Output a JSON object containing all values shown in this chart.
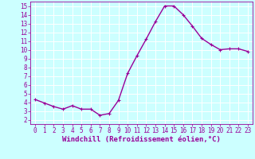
{
  "x": [
    0,
    1,
    2,
    3,
    4,
    5,
    6,
    7,
    8,
    9,
    10,
    11,
    12,
    13,
    14,
    15,
    16,
    17,
    18,
    19,
    20,
    21,
    22,
    23
  ],
  "y": [
    4.3,
    3.9,
    3.5,
    3.2,
    3.6,
    3.2,
    3.2,
    2.5,
    2.7,
    4.2,
    7.3,
    9.3,
    11.2,
    13.2,
    15.0,
    15.0,
    14.0,
    12.7,
    11.3,
    10.6,
    10.0,
    10.1,
    10.1,
    9.8
  ],
  "line_color": "#990099",
  "marker": "+",
  "marker_size": 3,
  "background_color": "#ccffff",
  "grid_color": "#ffffff",
  "xlabel": "Windchill (Refroidissement éolien,°C)",
  "ylabel": "",
  "title": "",
  "xlim": [
    -0.5,
    23.5
  ],
  "ylim": [
    1.5,
    15.5
  ],
  "yticks": [
    2,
    3,
    4,
    5,
    6,
    7,
    8,
    9,
    10,
    11,
    12,
    13,
    14,
    15
  ],
  "xticks": [
    0,
    1,
    2,
    3,
    4,
    5,
    6,
    7,
    8,
    9,
    10,
    11,
    12,
    13,
    14,
    15,
    16,
    17,
    18,
    19,
    20,
    21,
    22,
    23
  ],
  "tick_label_fontsize": 5.5,
  "xlabel_fontsize": 6.5,
  "line_width": 1.0,
  "marker_edge_width": 0.8
}
